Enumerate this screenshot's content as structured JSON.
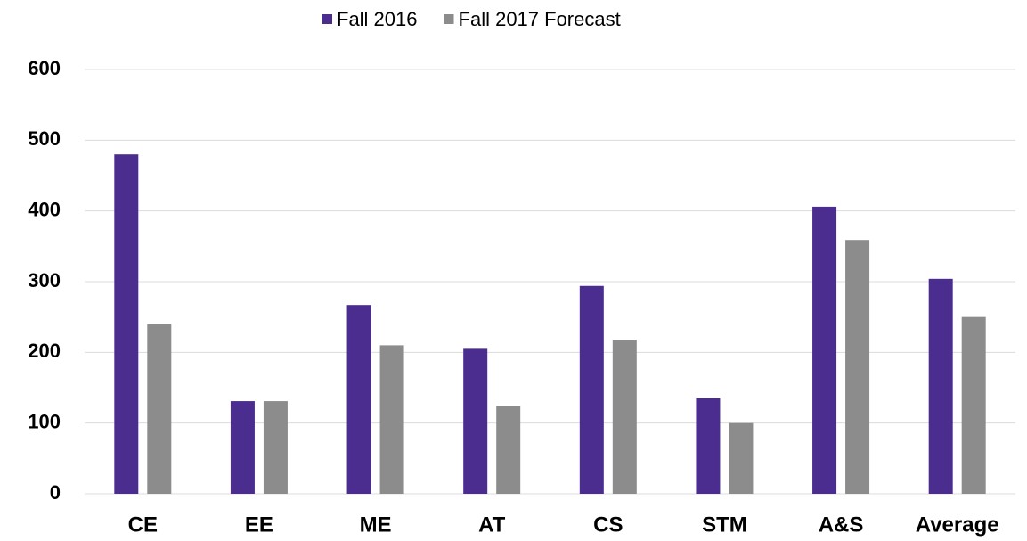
{
  "chart_data": {
    "type": "bar",
    "categories": [
      "CE",
      "EE",
      "ME",
      "AT",
      "CS",
      "STM",
      "A&S",
      "Average"
    ],
    "series": [
      {
        "name": "Fall 2016",
        "color": "#4b2c8f",
        "values": [
          480,
          131,
          267,
          205,
          294,
          135,
          406,
          304
        ]
      },
      {
        "name": "Fall 2017 Forecast",
        "color": "#8c8c8c",
        "values": [
          240,
          131,
          210,
          124,
          218,
          100,
          359,
          250
        ]
      }
    ],
    "ylim": [
      0,
      600
    ],
    "yticks": [
      0,
      100,
      200,
      300,
      400,
      500,
      600
    ],
    "grid": true,
    "legend": "top"
  }
}
